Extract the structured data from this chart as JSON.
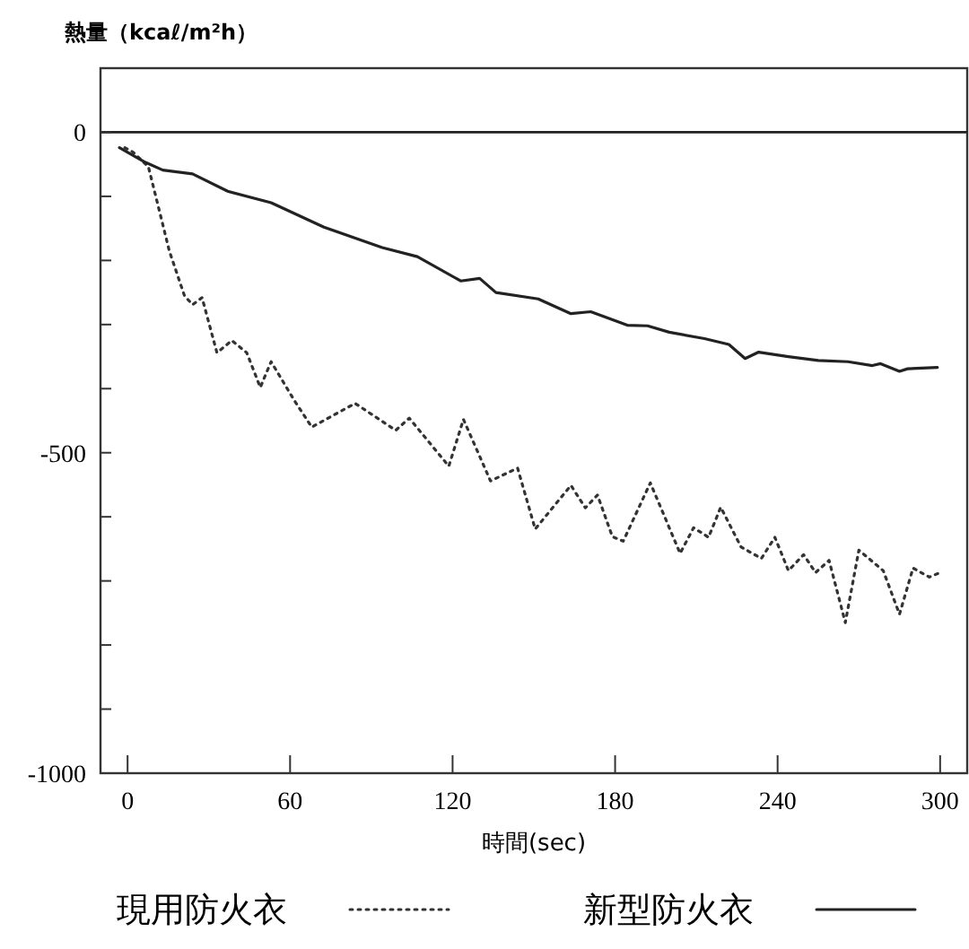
{
  "chart_data": {
    "type": "line",
    "ylabel": "熱量（kcaℓ/m²h）",
    "xlabel": "時間(sec)",
    "xlim": [
      -10,
      310
    ],
    "ylim": [
      -1000,
      100
    ],
    "xticks": [
      0,
      60,
      120,
      180,
      240,
      300
    ],
    "yticks": [
      {
        "value": -1000,
        "label": "-1000"
      },
      {
        "value": -900,
        "label": null
      },
      {
        "value": -800,
        "label": null
      },
      {
        "value": -700,
        "label": null
      },
      {
        "value": -600,
        "label": null
      },
      {
        "value": -500,
        "label": "-500"
      },
      {
        "value": -400,
        "label": null
      },
      {
        "value": -300,
        "label": null
      },
      {
        "value": -200,
        "label": null
      },
      {
        "value": -100,
        "label": null
      },
      0
    ],
    "grid": false,
    "legend": "bottom",
    "ref_lines": [
      {
        "axis": "y",
        "value": 0,
        "color": "#222222"
      }
    ],
    "series": [
      {
        "name": "現用防火衣",
        "color": "#333333",
        "line_style": "dotted",
        "x": [
          -1,
          2,
          7.7,
          11,
          15.4,
          21,
          24,
          27.5,
          33,
          38.5,
          44,
          49,
          53,
          61.5,
          68,
          84,
          99,
          104,
          118.6,
          124,
          134,
          144,
          150.5,
          163.7,
          169,
          173.5,
          179,
          183,
          193,
          204,
          209,
          214.5,
          219,
          226.5,
          234,
          239,
          244,
          249.6,
          254,
          259,
          265,
          270,
          279,
          285,
          290,
          296,
          300
        ],
        "values": [
          -24,
          -31,
          -54,
          -110,
          -185,
          -255,
          -269,
          -258,
          -344,
          -325,
          -344,
          -398,
          -358,
          -418,
          -460,
          -423,
          -465,
          -446,
          -521,
          -448,
          -544,
          -524,
          -619,
          -551,
          -586,
          -566,
          -631,
          -638,
          -547,
          -657,
          -617,
          -632,
          -585,
          -647,
          -665,
          -632,
          -684,
          -659,
          -687,
          -668,
          -765,
          -652,
          -684,
          -752,
          -680,
          -694,
          -687
        ]
      },
      {
        "name": "新型防火衣",
        "color": "#222222",
        "line_style": "solid",
        "x": [
          -3,
          6.6,
          13,
          24,
          37,
          53,
          72.5,
          94,
          107,
          123,
          130,
          136,
          151.6,
          163.7,
          171,
          184.5,
          192,
          200,
          213,
          222,
          228,
          233,
          244,
          255,
          266,
          275,
          278,
          285,
          288,
          299
        ],
        "values": [
          -24,
          -47,
          -59,
          -65,
          -92,
          -110,
          -148,
          -180,
          -194,
          -232,
          -228,
          -250,
          -260,
          -283,
          -280,
          -301,
          -302,
          -312,
          -322,
          -331,
          -353,
          -343,
          -350,
          -356,
          -358,
          -364,
          -361,
          -373,
          -369,
          -367
        ]
      }
    ]
  }
}
